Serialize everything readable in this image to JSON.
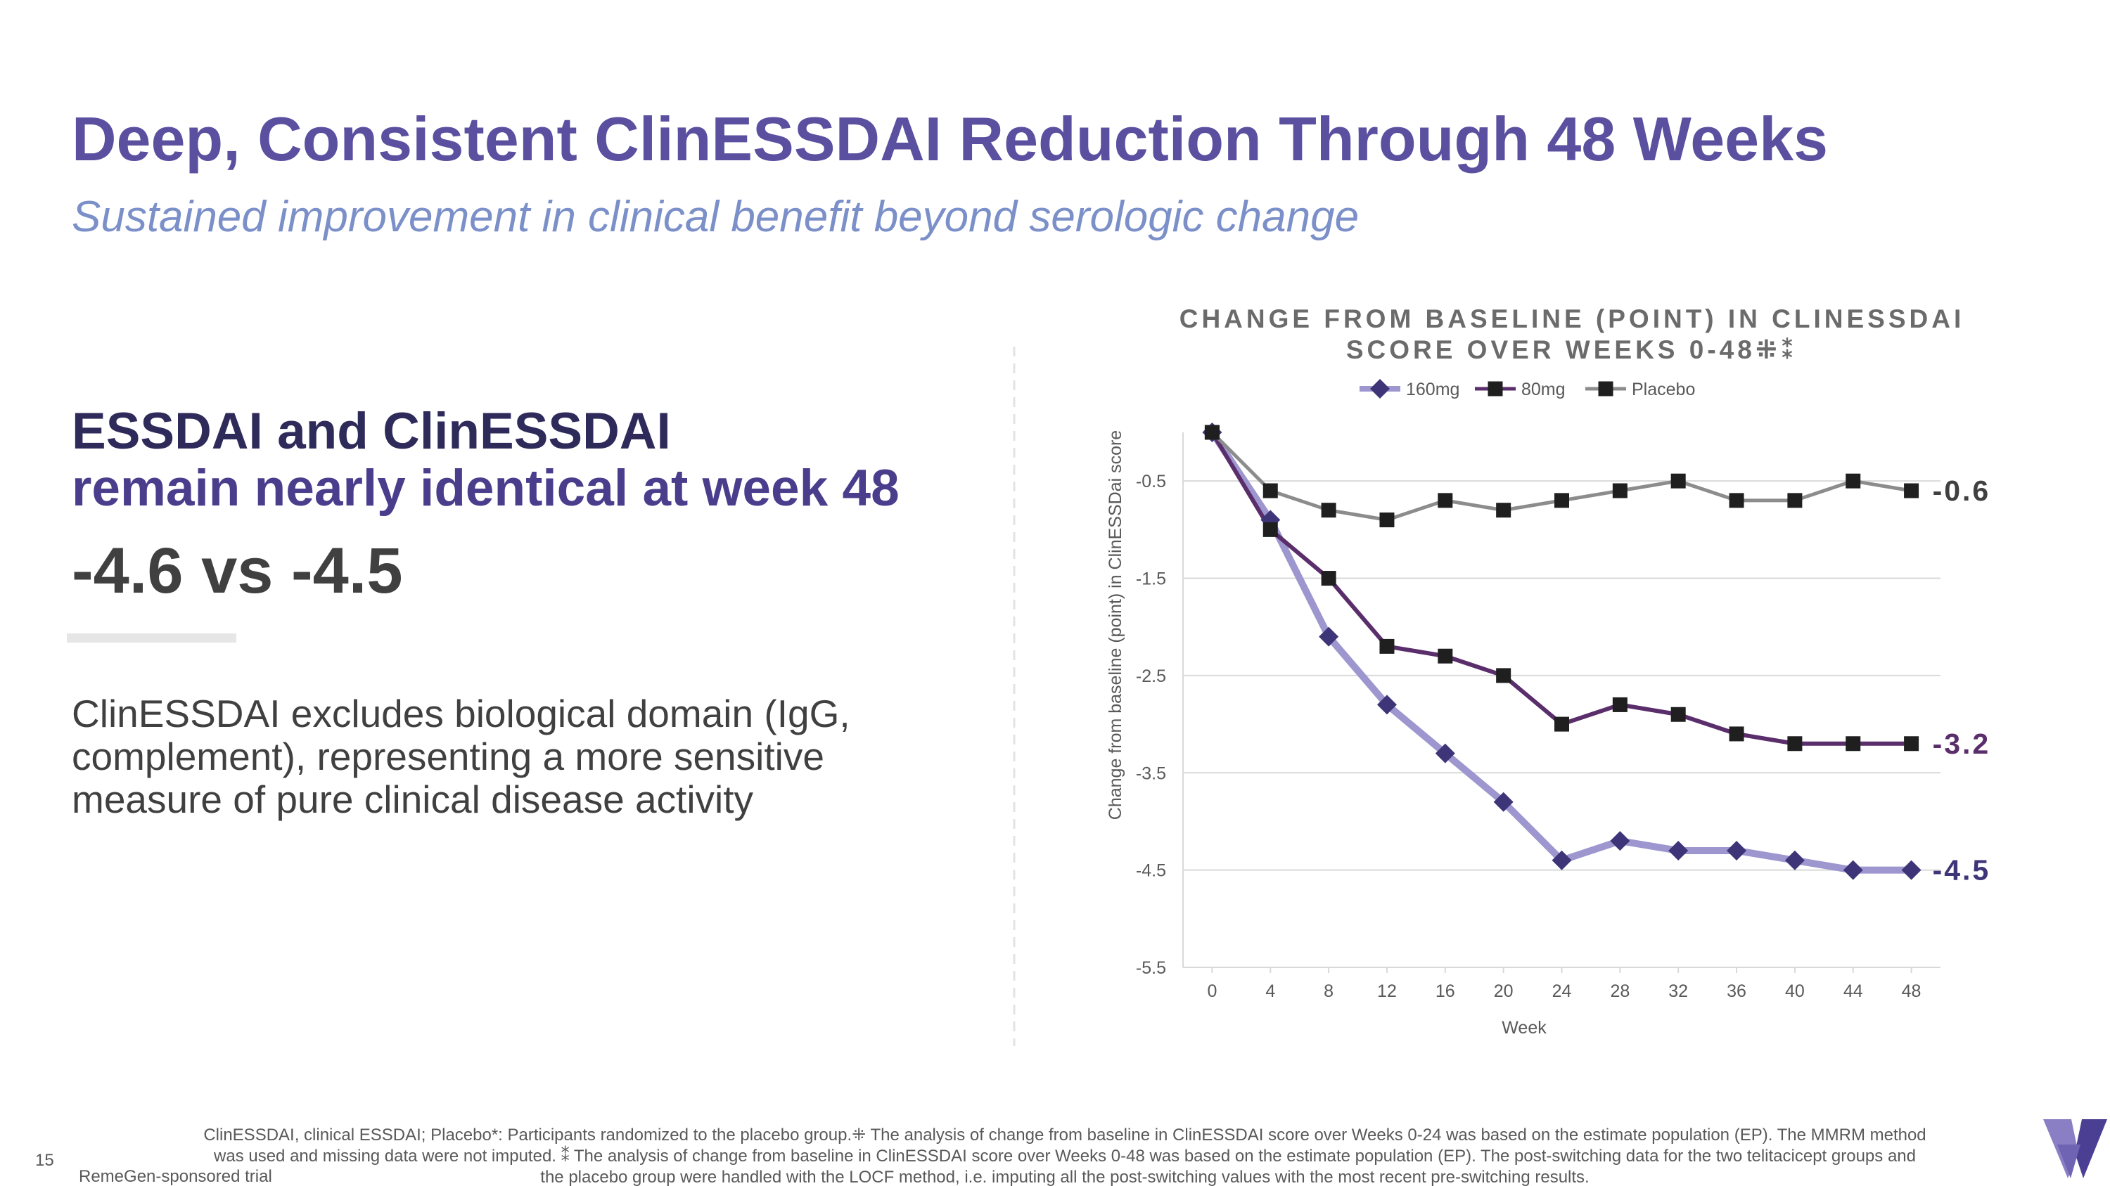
{
  "slide": {
    "title": "Deep, Consistent ClinESSDAI Reduction Through 48 Weeks",
    "subtitle": "Sustained improvement in clinical benefit beyond serologic change",
    "headline": [
      "ESSDAI and ClinESSDAI",
      "remain nearly identical at week 48"
    ],
    "comparison": "-4.6 vs -4.5",
    "body": [
      "ClinESSDAI excludes biological domain (IgG,",
      "complement), representing a more sensitive",
      "measure of pure clinical disease activity"
    ],
    "footnotes": [
      "ClinESSDAI, clinical ESSDAI; Placebo*: Participants randomized to the placebo group.⁜ The analysis of change from baseline in ClinESSDAI score over Weeks 0-24 was based on the estimate population (EP). The MMRM method",
      "was used and missing data were not imputed. ⁑ The analysis of change from baseline in ClinESSDAI score over Weeks 0-48 was based on the estimate population (EP). The post-switching data for the two telitacicept groups and",
      "the placebo group were handled with the LOCF method, i.e. imputing all the post-switching values with the most recent pre-switching results."
    ],
    "page_number": "15",
    "source": "RemeGen-sponsored trial"
  },
  "chart_data": {
    "type": "line",
    "title": [
      "CHANGE FROM BASELINE (POINT) IN CLINESSDAI",
      "SCORE OVER WEEKS 0-48⁜⁑"
    ],
    "x_label": "Week",
    "y_label": "Change from baseline (point) in ClinESSDai score",
    "x": [
      0,
      4,
      8,
      12,
      16,
      20,
      24,
      28,
      32,
      36,
      40,
      44,
      48
    ],
    "xlim": [
      -2,
      50
    ],
    "xticks": [
      0,
      4,
      8,
      12,
      16,
      20,
      24,
      28,
      32,
      36,
      40,
      44,
      48
    ],
    "ylim": [
      -5.5,
      0
    ],
    "yticks": [
      -0.5,
      -1.5,
      -2.5,
      -3.5,
      -4.5,
      -5.5
    ],
    "grid": true,
    "legend": "top",
    "series": [
      {
        "name": "160mg",
        "color": "#9d96cf",
        "marker": "diamond",
        "marker_color": "#3d3578",
        "label_color": "#3d3578",
        "values": [
          0,
          -0.9,
          -2.1,
          -2.8,
          -3.3,
          -3.8,
          -4.4,
          -4.2,
          -4.3,
          -4.3,
          -4.4,
          -4.5,
          -4.5
        ]
      },
      {
        "name": "80mg",
        "color": "#5a2d6b",
        "marker": "square",
        "marker_color": "#1f1f1f",
        "label_color": "#5a2d6b",
        "values": [
          0,
          -1.0,
          -1.5,
          -2.2,
          -2.3,
          -2.5,
          -3.0,
          -2.8,
          -2.9,
          -3.1,
          -3.2,
          -3.2,
          -3.2
        ]
      },
      {
        "name": "Placebo",
        "color": "#8c8c8c",
        "marker": "square",
        "marker_color": "#1f1f1f",
        "label_color": "#404040",
        "values": [
          0,
          -0.6,
          -0.8,
          -0.9,
          -0.7,
          -0.8,
          -0.7,
          -0.6,
          -0.5,
          -0.7,
          -0.7,
          -0.5,
          -0.6
        ]
      }
    ]
  }
}
